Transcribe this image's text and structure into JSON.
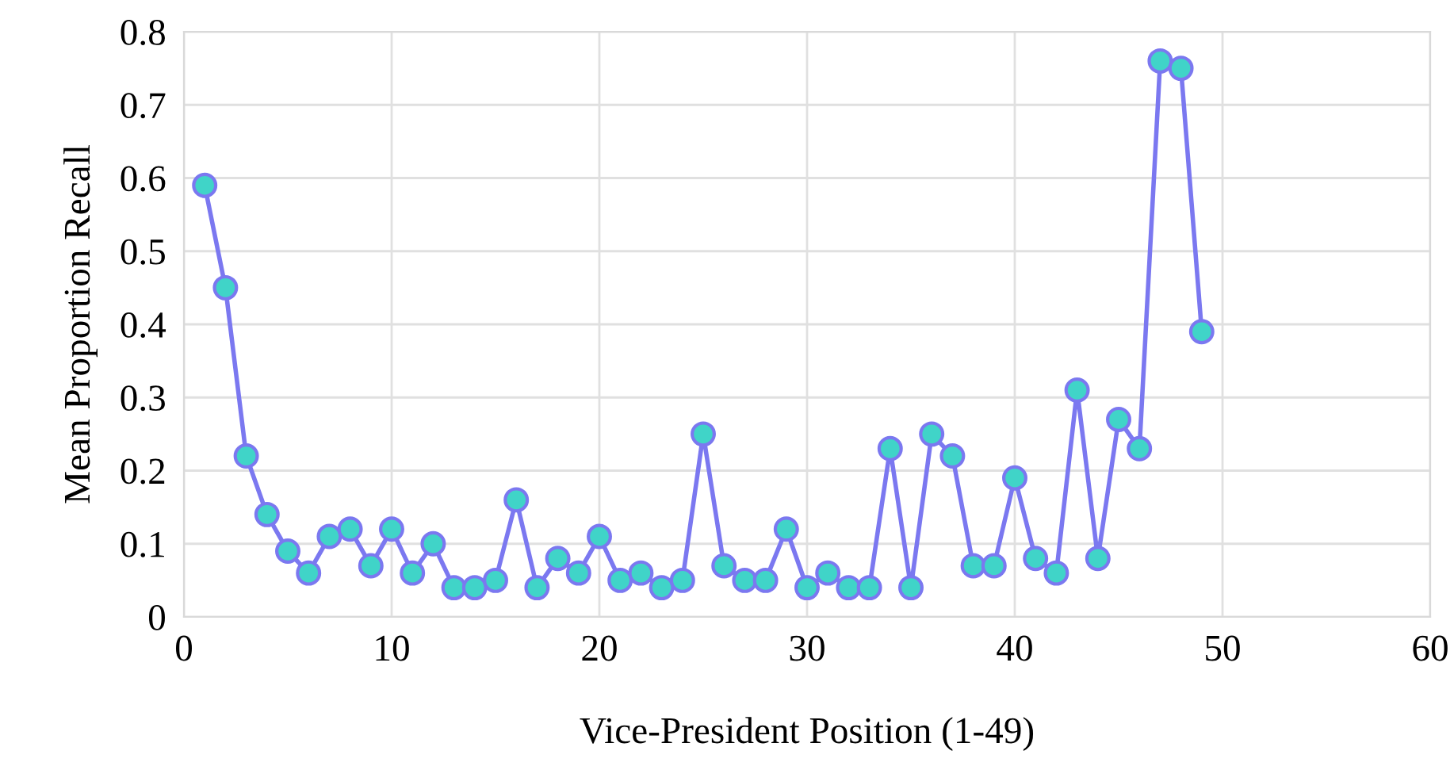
{
  "chart_data": {
    "type": "line",
    "xlabel": "Vice-President Position (1-49)",
    "ylabel": "Mean Proportion Recall",
    "xlim": [
      0,
      60
    ],
    "xticks": [
      0,
      10,
      20,
      30,
      40,
      50,
      60
    ],
    "ylim": [
      0,
      0.8
    ],
    "yticks": [
      0,
      0.1,
      0.2,
      0.3,
      0.4,
      0.5,
      0.6,
      0.7,
      0.8
    ],
    "grid": true,
    "marker": "circle",
    "line_style": "solid",
    "series": [
      {
        "color": "#7b78f0",
        "x": [
          1,
          2,
          3,
          4,
          5,
          6,
          7,
          8,
          9,
          10,
          11,
          12,
          13,
          14,
          15,
          16,
          17,
          18,
          19,
          20,
          21,
          22,
          23,
          24,
          25,
          26,
          27,
          28,
          29,
          30,
          31,
          32,
          33,
          34,
          35,
          36,
          37,
          38,
          39,
          40,
          41,
          42,
          43,
          44,
          45,
          46,
          47,
          48,
          49
        ],
        "values": [
          0.59,
          0.45,
          0.22,
          0.14,
          0.09,
          0.06,
          0.11,
          0.12,
          0.07,
          0.12,
          0.06,
          0.1,
          0.04,
          0.04,
          0.05,
          0.16,
          0.04,
          0.08,
          0.06,
          0.11,
          0.05,
          0.06,
          0.04,
          0.05,
          0.25,
          0.07,
          0.05,
          0.05,
          0.12,
          0.04,
          0.06,
          0.04,
          0.04,
          0.23,
          0.04,
          0.25,
          0.22,
          0.07,
          0.07,
          0.19,
          0.08,
          0.06,
          0.31,
          0.08,
          0.27,
          0.23,
          0.76,
          0.75,
          0.39
        ]
      }
    ]
  }
}
